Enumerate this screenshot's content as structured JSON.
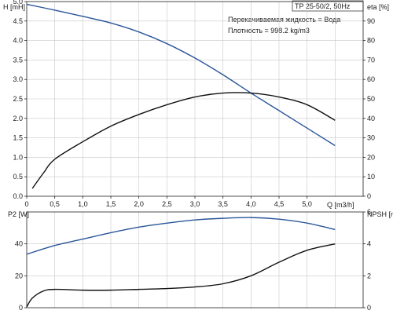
{
  "chart_data": [
    {
      "type": "line",
      "title": "TP 25-50/2, 50Hz",
      "annotations": [
        "Перекачиваемая жидкость = Вода",
        "Плотность = 998.2 kg/m3"
      ],
      "xlabel": "Q [m3/h]",
      "ylabel_left": "H [mH]",
      "ylabel_right": "eta [%]",
      "xlim": [
        0,
        6.0
      ],
      "ylim_left": [
        0,
        5.0
      ],
      "ylim_right": [
        0,
        100
      ],
      "x_ticks": [
        "0",
        "0,5",
        "1,0",
        "1,5",
        "2,0",
        "2,5",
        "3,0",
        "3,5",
        "4,0",
        "4,5",
        "5,0"
      ],
      "y_ticks_left": [
        "0.0",
        "0.5",
        "1.0",
        "1.5",
        "2.0",
        "2.5",
        "3.0",
        "3.5",
        "4.0",
        "4.5",
        "5.0"
      ],
      "y_ticks_right": [
        "0",
        "10",
        "20",
        "30",
        "40",
        "50",
        "60",
        "70",
        "80",
        "90"
      ],
      "grid": true,
      "series": [
        {
          "axis": "left",
          "color": "#2a5599",
          "x": [
            0,
            0.5,
            1.0,
            1.5,
            2.0,
            2.5,
            3.0,
            3.5,
            4.0,
            4.5,
            5.0,
            5.5
          ],
          "y": [
            4.93,
            4.78,
            4.62,
            4.45,
            4.22,
            3.92,
            3.55,
            3.12,
            2.65,
            2.2,
            1.75,
            1.3
          ]
        },
        {
          "axis": "right",
          "color": "#111111",
          "x": [
            0.1,
            0.3,
            0.5,
            1.0,
            1.5,
            2.0,
            2.5,
            3.0,
            3.5,
            4.0,
            4.5,
            5.0,
            5.5
          ],
          "y": [
            4,
            12,
            19,
            28,
            36,
            42,
            47,
            51,
            53,
            53,
            51,
            47,
            39
          ]
        }
      ]
    },
    {
      "type": "line",
      "xlabel": "",
      "ylabel_left": "P2 [W]",
      "ylabel_right": "NPSH [mH]",
      "xlim": [
        0,
        6.0
      ],
      "ylim_left": [
        0,
        60
      ],
      "ylim_right": [
        0,
        6
      ],
      "y_ticks_left": [
        "0",
        "20",
        "40"
      ],
      "y_ticks_right": [
        "0",
        "2",
        "4",
        "6"
      ],
      "grid": true,
      "series": [
        {
          "axis": "left",
          "color": "#2a5599",
          "x": [
            0,
            0.5,
            1.0,
            1.5,
            2.0,
            2.5,
            3.0,
            3.5,
            4.0,
            4.5,
            5.0,
            5.5
          ],
          "y": [
            33.5,
            39,
            43,
            47,
            50.5,
            53,
            55,
            56,
            56.5,
            55.5,
            53,
            49
          ]
        },
        {
          "axis": "right",
          "color": "#111111",
          "x": [
            0,
            0.1,
            0.3,
            0.5,
            1.0,
            1.5,
            2.0,
            2.5,
            3.0,
            3.5,
            4.0,
            4.5,
            5.0,
            5.5
          ],
          "y": [
            0.05,
            0.6,
            1.05,
            1.15,
            1.1,
            1.1,
            1.15,
            1.2,
            1.3,
            1.5,
            2.0,
            2.85,
            3.6,
            4.0
          ]
        }
      ]
    }
  ]
}
